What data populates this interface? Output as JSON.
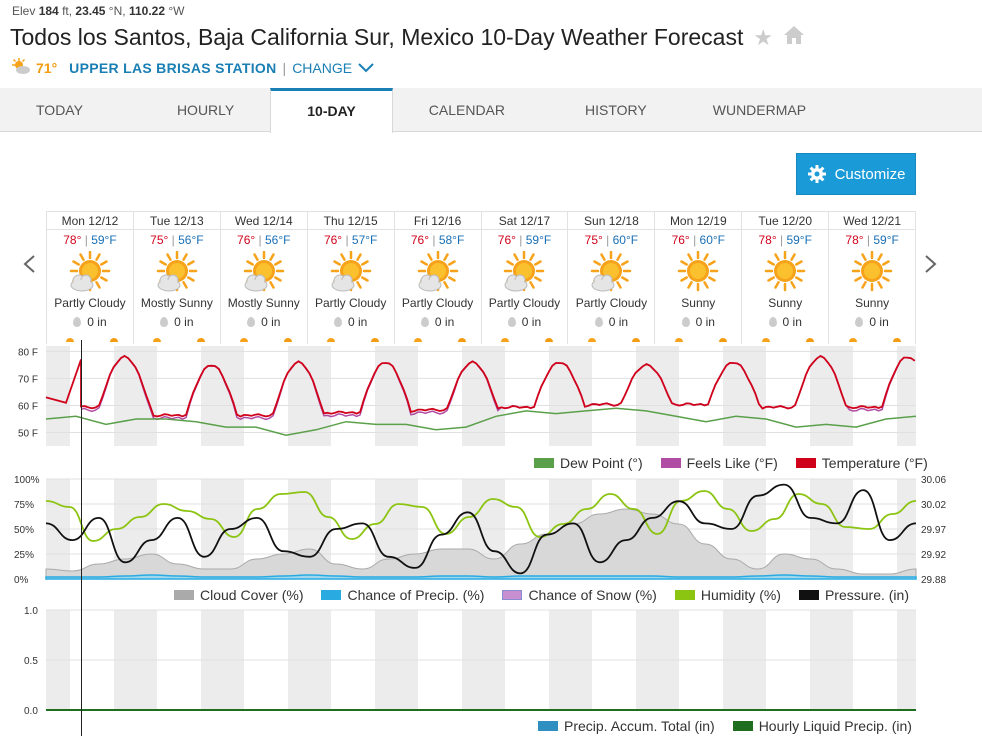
{
  "header": {
    "elev_label": "Elev",
    "elev_value": "184",
    "elev_unit": "ft,",
    "lat": "23.45",
    "lat_unit": "°N,",
    "lon": "110.22",
    "lon_unit": "°W",
    "title": "Todos los Santos, Baja California Sur, Mexico 10-Day Weather Forecast",
    "current_temp": "71°",
    "station": "UPPER LAS BRISAS STATION",
    "sep": "|",
    "change": "CHANGE"
  },
  "tabs": [
    {
      "label": "TODAY"
    },
    {
      "label": "HOURLY"
    },
    {
      "label": "10-DAY"
    },
    {
      "label": "CALENDAR"
    },
    {
      "label": "HISTORY"
    },
    {
      "label": "WUNDERMAP"
    }
  ],
  "customize_label": "Customize",
  "days": [
    {
      "name": "Mon 12/12",
      "hi": "78°",
      "lo": "59°F",
      "cond": "Partly Cloudy",
      "precip": "0 in",
      "icon": "partly-cloudy"
    },
    {
      "name": "Tue 12/13",
      "hi": "75°",
      "lo": "56°F",
      "cond": "Mostly Sunny",
      "precip": "0 in",
      "icon": "partly-cloudy"
    },
    {
      "name": "Wed 12/14",
      "hi": "76°",
      "lo": "56°F",
      "cond": "Mostly Sunny",
      "precip": "0 in",
      "icon": "partly-cloudy"
    },
    {
      "name": "Thu 12/15",
      "hi": "76°",
      "lo": "57°F",
      "cond": "Partly Cloudy",
      "precip": "0 in",
      "icon": "partly-cloudy"
    },
    {
      "name": "Fri 12/16",
      "hi": "76°",
      "lo": "58°F",
      "cond": "Partly Cloudy",
      "precip": "0 in",
      "icon": "partly-cloudy"
    },
    {
      "name": "Sat 12/17",
      "hi": "76°",
      "lo": "59°F",
      "cond": "Partly Cloudy",
      "precip": "0 in",
      "icon": "partly-cloudy"
    },
    {
      "name": "Sun 12/18",
      "hi": "75°",
      "lo": "60°F",
      "cond": "Partly Cloudy",
      "precip": "0 in",
      "icon": "partly-cloudy"
    },
    {
      "name": "Mon 12/19",
      "hi": "76°",
      "lo": "60°F",
      "cond": "Sunny",
      "precip": "0 in",
      "icon": "sunny"
    },
    {
      "name": "Tue 12/20",
      "hi": "78°",
      "lo": "59°F",
      "cond": "Sunny",
      "precip": "0 in",
      "icon": "sunny"
    },
    {
      "name": "Wed 12/21",
      "hi": "78°",
      "lo": "59°F",
      "cond": "Sunny",
      "precip": "0 in",
      "icon": "sunny"
    }
  ],
  "colors": {
    "temperature": "#d0021b",
    "feels_like": "#b04ca4",
    "dew_point": "#5aa04a",
    "cloud_cover": "#aaaaaa",
    "chance_precip": "#29abe2",
    "chance_snow": "#c78fd0",
    "humidity": "#8cc412",
    "pressure": "#111111",
    "precip_accum": "#2e8fc0",
    "hourly_liquid": "#1f6e1f"
  },
  "chart_data": [
    {
      "type": "line",
      "name": "temperature-chart",
      "y_ticks": [
        "80 F",
        "70 F",
        "60 F",
        "50 F"
      ],
      "ylim": [
        45,
        82
      ],
      "days": 10,
      "series": [
        {
          "name": "Temperature (°F)",
          "daily_hi": [
            78,
            75,
            76,
            76,
            76,
            76,
            75,
            76,
            78,
            78
          ],
          "daily_lo": [
            59,
            56,
            56,
            57,
            58,
            59,
            60,
            60,
            59,
            59
          ]
        },
        {
          "name": "Feels Like (°F)",
          "daily_hi": [
            78,
            75,
            76,
            76,
            76,
            76,
            75,
            76,
            78,
            78
          ],
          "daily_lo": [
            58,
            55,
            55,
            56,
            57,
            59,
            60,
            60,
            59,
            58
          ]
        },
        {
          "name": "Dew Point (°)",
          "values": [
            55,
            56,
            53,
            55,
            55,
            54,
            52,
            52,
            49,
            51,
            54,
            53,
            53,
            51,
            52,
            56,
            58,
            57,
            58,
            59,
            58,
            56,
            54,
            56,
            55,
            52,
            53,
            52,
            55,
            56
          ]
        }
      ],
      "legend": [
        "Dew Point (°)",
        "Feels Like (°F)",
        "Temperature (°F)"
      ]
    },
    {
      "type": "line",
      "name": "humidity-pressure-chart",
      "y_ticks_left": [
        "100%",
        "75%",
        "50%",
        "25%",
        "0%"
      ],
      "y_ticks_right": [
        "30.06",
        "30.02",
        "29.97",
        "29.92",
        "29.88"
      ],
      "ylim_left": [
        0,
        100
      ],
      "ylim_right": [
        29.88,
        30.06
      ],
      "series": [
        {
          "name": "Cloud Cover (%)",
          "values": [
            10,
            8,
            15,
            20,
            25,
            15,
            10,
            10,
            20,
            25,
            30,
            15,
            10,
            20,
            25,
            30,
            30,
            20,
            35,
            45,
            55,
            65,
            70,
            65,
            55,
            35,
            20,
            10,
            25,
            20,
            10,
            5,
            5,
            10
          ]
        },
        {
          "name": "Chance of Precip. (%)",
          "values": [
            2,
            2,
            2,
            3,
            4,
            3,
            2,
            2,
            2,
            3,
            4,
            3,
            2,
            2,
            2,
            3,
            3,
            2,
            3,
            3,
            3,
            3,
            3,
            3,
            2,
            2,
            2,
            3,
            4,
            3,
            2,
            2,
            2,
            2
          ]
        },
        {
          "name": "Chance of Snow (%)",
          "values": []
        },
        {
          "name": "Humidity (%)",
          "values": [
            78,
            72,
            38,
            50,
            62,
            75,
            68,
            60,
            42,
            70,
            85,
            87,
            62,
            40,
            55,
            75,
            72,
            45,
            62,
            80,
            72,
            42,
            55,
            70,
            85,
            70,
            45,
            78,
            88,
            70,
            48,
            60,
            85,
            75,
            52,
            50,
            65,
            78
          ]
        },
        {
          "name": "Pressure. (in)",
          "values": [
            29.98,
            29.95,
            29.99,
            29.91,
            29.95,
            29.99,
            29.92,
            29.97,
            29.99,
            29.93,
            29.92,
            29.97,
            29.98,
            29.92,
            29.9,
            29.96,
            30.0,
            29.93,
            29.89,
            29.96,
            29.98,
            29.91,
            29.95,
            29.99,
            30.02,
            29.98,
            29.97,
            30.03,
            30.05,
            29.99,
            29.98,
            30.04,
            29.95,
            29.98
          ]
        }
      ],
      "legend": [
        "Cloud Cover (%)",
        "Chance of Precip. (%)",
        "Chance of Snow (%)",
        "Humidity (%)",
        "Pressure. (in)"
      ]
    },
    {
      "type": "line",
      "name": "precip-chart",
      "y_ticks": [
        "1.0",
        "0.5",
        "0.0"
      ],
      "ylim": [
        0,
        1
      ],
      "series": [
        {
          "name": "Precip. Accum. Total (in)",
          "values": [
            0,
            0
          ]
        },
        {
          "name": "Hourly Liquid Precip. (in)",
          "values": [
            0,
            0
          ]
        }
      ],
      "legend": [
        "Precip. Accum. Total (in)",
        "Hourly Liquid Precip. (in)"
      ]
    }
  ]
}
